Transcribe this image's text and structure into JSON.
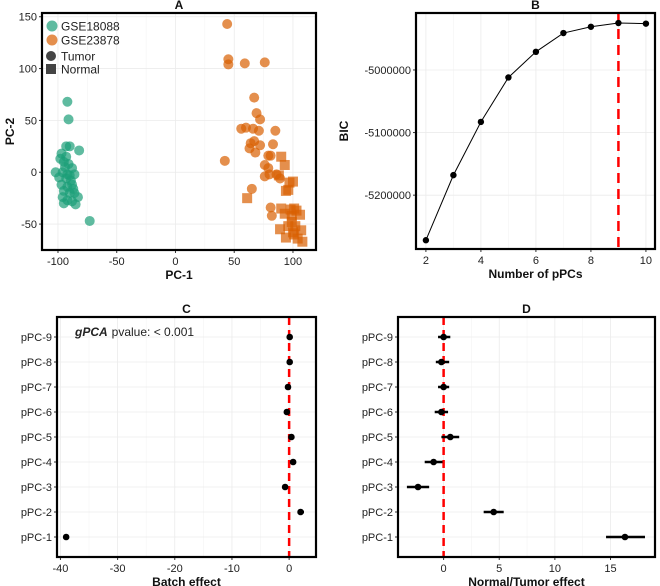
{
  "chart_data": [
    {
      "panel": "A",
      "type": "scatter",
      "title": "A",
      "xlabel": "PC-1",
      "ylabel": "PC-2",
      "xlim": [
        -113.6,
        119.6
      ],
      "ylim": [
        -75,
        153.6
      ],
      "xticks": [
        -100,
        -50,
        0,
        50,
        100
      ],
      "yticks": [
        -50,
        0,
        50,
        100,
        150
      ],
      "grid": true,
      "legend_position": "top-left",
      "legend": {
        "color": [
          {
            "label": "GSE18088",
            "color": "#1b9e77"
          },
          {
            "label": "GSE23878",
            "color": "#d95f02"
          }
        ],
        "shape": [
          {
            "label": "Tumor",
            "shape": "circle"
          },
          {
            "label": "Normal",
            "shape": "square"
          }
        ]
      },
      "series": [
        {
          "name": "GSE18088 Tumor",
          "color": "#1b9e77",
          "shape": "circle",
          "points": [
            [
              -92,
              68
            ],
            [
              -91,
              51
            ],
            [
              -93,
              25
            ],
            [
              -90,
              25
            ],
            [
              -82,
              21
            ],
            [
              -97,
              18
            ],
            [
              -98,
              13
            ],
            [
              -95,
              10
            ],
            [
              -91,
              8
            ],
            [
              -88,
              4
            ],
            [
              -102,
              0
            ],
            [
              -96,
              0
            ],
            [
              -92,
              -2
            ],
            [
              -86,
              -2
            ],
            [
              -93,
              -6
            ],
            [
              -89,
              -8
            ],
            [
              -97,
              -12
            ],
            [
              -92,
              -14
            ],
            [
              -88,
              -12
            ],
            [
              -95,
              -18
            ],
            [
              -90,
              -20
            ],
            [
              -86,
              -20
            ],
            [
              -83,
              -24
            ],
            [
              -96,
              -24
            ],
            [
              -92,
              -27
            ],
            [
              -88,
              -28
            ],
            [
              -95,
              -30
            ],
            [
              -85,
              -31
            ],
            [
              -73,
              -47
            ],
            [
              -94,
              5
            ],
            [
              -90,
              -3
            ],
            [
              -99,
              -5
            ],
            [
              -93,
              15
            ],
            [
              -87,
              -16
            ]
          ]
        },
        {
          "name": "GSE23878 Tumor",
          "color": "#d95f02",
          "shape": "circle",
          "points": [
            [
              44,
              143
            ],
            [
              45,
              109
            ],
            [
              45,
              104
            ],
            [
              59,
              105
            ],
            [
              76,
              106
            ],
            [
              67,
              72
            ],
            [
              69,
              57
            ],
            [
              72,
              51
            ],
            [
              56,
              42
            ],
            [
              60,
              43
            ],
            [
              66,
              42
            ],
            [
              71,
              40
            ],
            [
              85,
              40
            ],
            [
              64,
              28
            ],
            [
              67,
              30
            ],
            [
              72,
              26
            ],
            [
              83,
              27
            ],
            [
              63,
              23
            ],
            [
              68,
              19
            ],
            [
              79,
              16
            ],
            [
              81,
              16
            ],
            [
              42,
              11
            ],
            [
              76,
              7
            ],
            [
              79,
              4
            ],
            [
              80,
              -2
            ],
            [
              76,
              -4
            ],
            [
              86,
              -2
            ],
            [
              89,
              -6
            ],
            [
              65,
              -16
            ],
            [
              81,
              -34
            ],
            [
              82,
              -42
            ]
          ]
        },
        {
          "name": "GSE23878 Normal",
          "color": "#d95f02",
          "shape": "square",
          "points": [
            [
              61,
              -25
            ],
            [
              90,
              15
            ],
            [
              93,
              7
            ],
            [
              88,
              -3
            ],
            [
              97,
              -10
            ],
            [
              100,
              -9
            ],
            [
              94,
              -18
            ],
            [
              96,
              -17
            ],
            [
              90,
              -35
            ],
            [
              98,
              -36
            ],
            [
              101,
              -35
            ],
            [
              103,
              -37
            ],
            [
              93,
              -40
            ],
            [
              99,
              -42
            ],
            [
              106,
              -41
            ],
            [
              99,
              -48
            ],
            [
              89,
              -55
            ],
            [
              96,
              -52
            ],
            [
              102,
              -52
            ],
            [
              107,
              -56
            ],
            [
              94,
              -63
            ],
            [
              101,
              -60
            ],
            [
              104,
              -64
            ],
            [
              108,
              -67
            ],
            [
              100,
              -58
            ]
          ]
        }
      ]
    },
    {
      "panel": "B",
      "type": "line",
      "title": "B",
      "xlabel": "Number of pPCs",
      "ylabel": "BIC",
      "x": [
        2,
        3,
        4,
        5,
        6,
        7,
        8,
        9,
        10
      ],
      "y": [
        -5272000,
        -5168000,
        -5083000,
        -5012000,
        -4971000,
        -4941000,
        -4931000,
        -4925000,
        -4926000
      ],
      "xlim": [
        1.64,
        10.33
      ],
      "ylim": [
        -5286000,
        -4909000
      ],
      "xticks": [
        2,
        4,
        6,
        8,
        10
      ],
      "yticks": [
        -5200000,
        -5100000,
        -5000000
      ],
      "ytick_labels": [
        "-5200000",
        "-5100000",
        "-5000000"
      ],
      "vline": {
        "x": 9,
        "color": "#ff0000",
        "style": "dashed"
      },
      "grid": true
    },
    {
      "panel": "C",
      "type": "scatter",
      "title": "C",
      "xlabel": "Batch effect",
      "ylabel": "",
      "categories": [
        "pPC-1",
        "pPC-2",
        "pPC-3",
        "pPC-4",
        "pPC-5",
        "pPC-6",
        "pPC-7",
        "pPC-8",
        "pPC-9"
      ],
      "values": [
        -39,
        2.0,
        -0.7,
        0.7,
        0.4,
        -0.4,
        -0.2,
        0.1,
        0.1
      ],
      "ci_low": [
        -39.3,
        1.5,
        -1.1,
        0.4,
        0.1,
        -0.7,
        -0.5,
        -0.2,
        -0.2
      ],
      "ci_high": [
        -38.7,
        2.6,
        -0.3,
        1.0,
        0.7,
        -0.1,
        0.1,
        0.4,
        0.4
      ],
      "xlim": [
        -40.6,
        4.7
      ],
      "xticks": [
        -40,
        -30,
        -20,
        -10,
        0
      ],
      "vline": {
        "x": 0,
        "color": "#ff0000",
        "style": "dashed"
      },
      "annotation": {
        "method": "gPCA",
        "text": "pvalue: < 0.001"
      },
      "grid": true
    },
    {
      "panel": "D",
      "type": "scatter",
      "title": "D",
      "xlabel": "Normal/Tumor effect",
      "ylabel": "",
      "categories": [
        "pPC-1",
        "pPC-2",
        "pPC-3",
        "pPC-4",
        "pPC-5",
        "pPC-6",
        "pPC-7",
        "pPC-8",
        "pPC-9"
      ],
      "values": [
        16.3,
        4.5,
        -2.3,
        -0.9,
        0.6,
        -0.2,
        0.0,
        -0.2,
        0.0
      ],
      "ci_low": [
        14.6,
        3.6,
        -3.3,
        -1.7,
        -0.2,
        -0.8,
        -0.5,
        -0.7,
        -0.5
      ],
      "ci_high": [
        18.1,
        5.4,
        -1.3,
        -0.1,
        1.4,
        0.4,
        0.5,
        0.5,
        0.6
      ],
      "xlim": [
        -4.1,
        19
      ],
      "xticks": [
        0,
        5,
        10,
        15
      ],
      "vline": {
        "x": 0,
        "color": "#ff0000",
        "style": "dashed"
      },
      "grid": true
    }
  ]
}
